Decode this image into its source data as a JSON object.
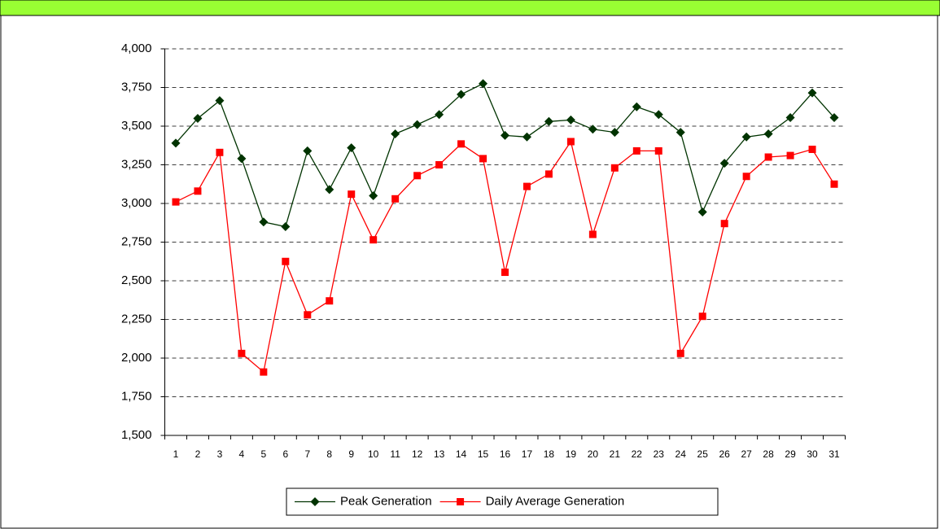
{
  "chart_data": {
    "type": "line",
    "categories": [
      "1",
      "2",
      "3",
      "4",
      "5",
      "6",
      "7",
      "8",
      "9",
      "10",
      "11",
      "12",
      "13",
      "14",
      "15",
      "16",
      "17",
      "18",
      "19",
      "20",
      "21",
      "22",
      "23",
      "24",
      "25",
      "26",
      "27",
      "28",
      "29",
      "30",
      "31"
    ],
    "series": [
      {
        "name": "Peak Generation",
        "color": "#003300",
        "marker": "diamond",
        "values": [
          3390,
          3550,
          3665,
          3290,
          2880,
          2850,
          3340,
          3090,
          3360,
          3050,
          3450,
          3510,
          3575,
          3705,
          3775,
          3440,
          3430,
          3530,
          3540,
          3480,
          3460,
          3625,
          3575,
          3460,
          2945,
          3260,
          3430,
          3450,
          3555,
          3715,
          3555
        ]
      },
      {
        "name": "Daily Average Generation",
        "color": "#ff0000",
        "marker": "square",
        "values": [
          3010,
          3080,
          3330,
          2030,
          1910,
          2625,
          2280,
          2370,
          3060,
          2765,
          3030,
          3180,
          3250,
          3385,
          3290,
          2555,
          3110,
          3190,
          3400,
          2800,
          3230,
          3340,
          3340,
          2030,
          2270,
          2870,
          3175,
          3300,
          3310,
          3350,
          3125
        ]
      }
    ],
    "ylim": [
      1500,
      4000
    ],
    "yticks": [
      {
        "value": 1500,
        "label": "1,500"
      },
      {
        "value": 1750,
        "label": "1,750"
      },
      {
        "value": 2000,
        "label": "2,000"
      },
      {
        "value": 2250,
        "label": "2,250"
      },
      {
        "value": 2500,
        "label": "2,500"
      },
      {
        "value": 2750,
        "label": "2,750"
      },
      {
        "value": 3000,
        "label": "3,000"
      },
      {
        "value": 3250,
        "label": "3,250"
      },
      {
        "value": 3500,
        "label": "3,500"
      },
      {
        "value": 3750,
        "label": "3,750"
      },
      {
        "value": 4000,
        "label": "4,000"
      }
    ],
    "grid": true,
    "legend": "bottom"
  }
}
